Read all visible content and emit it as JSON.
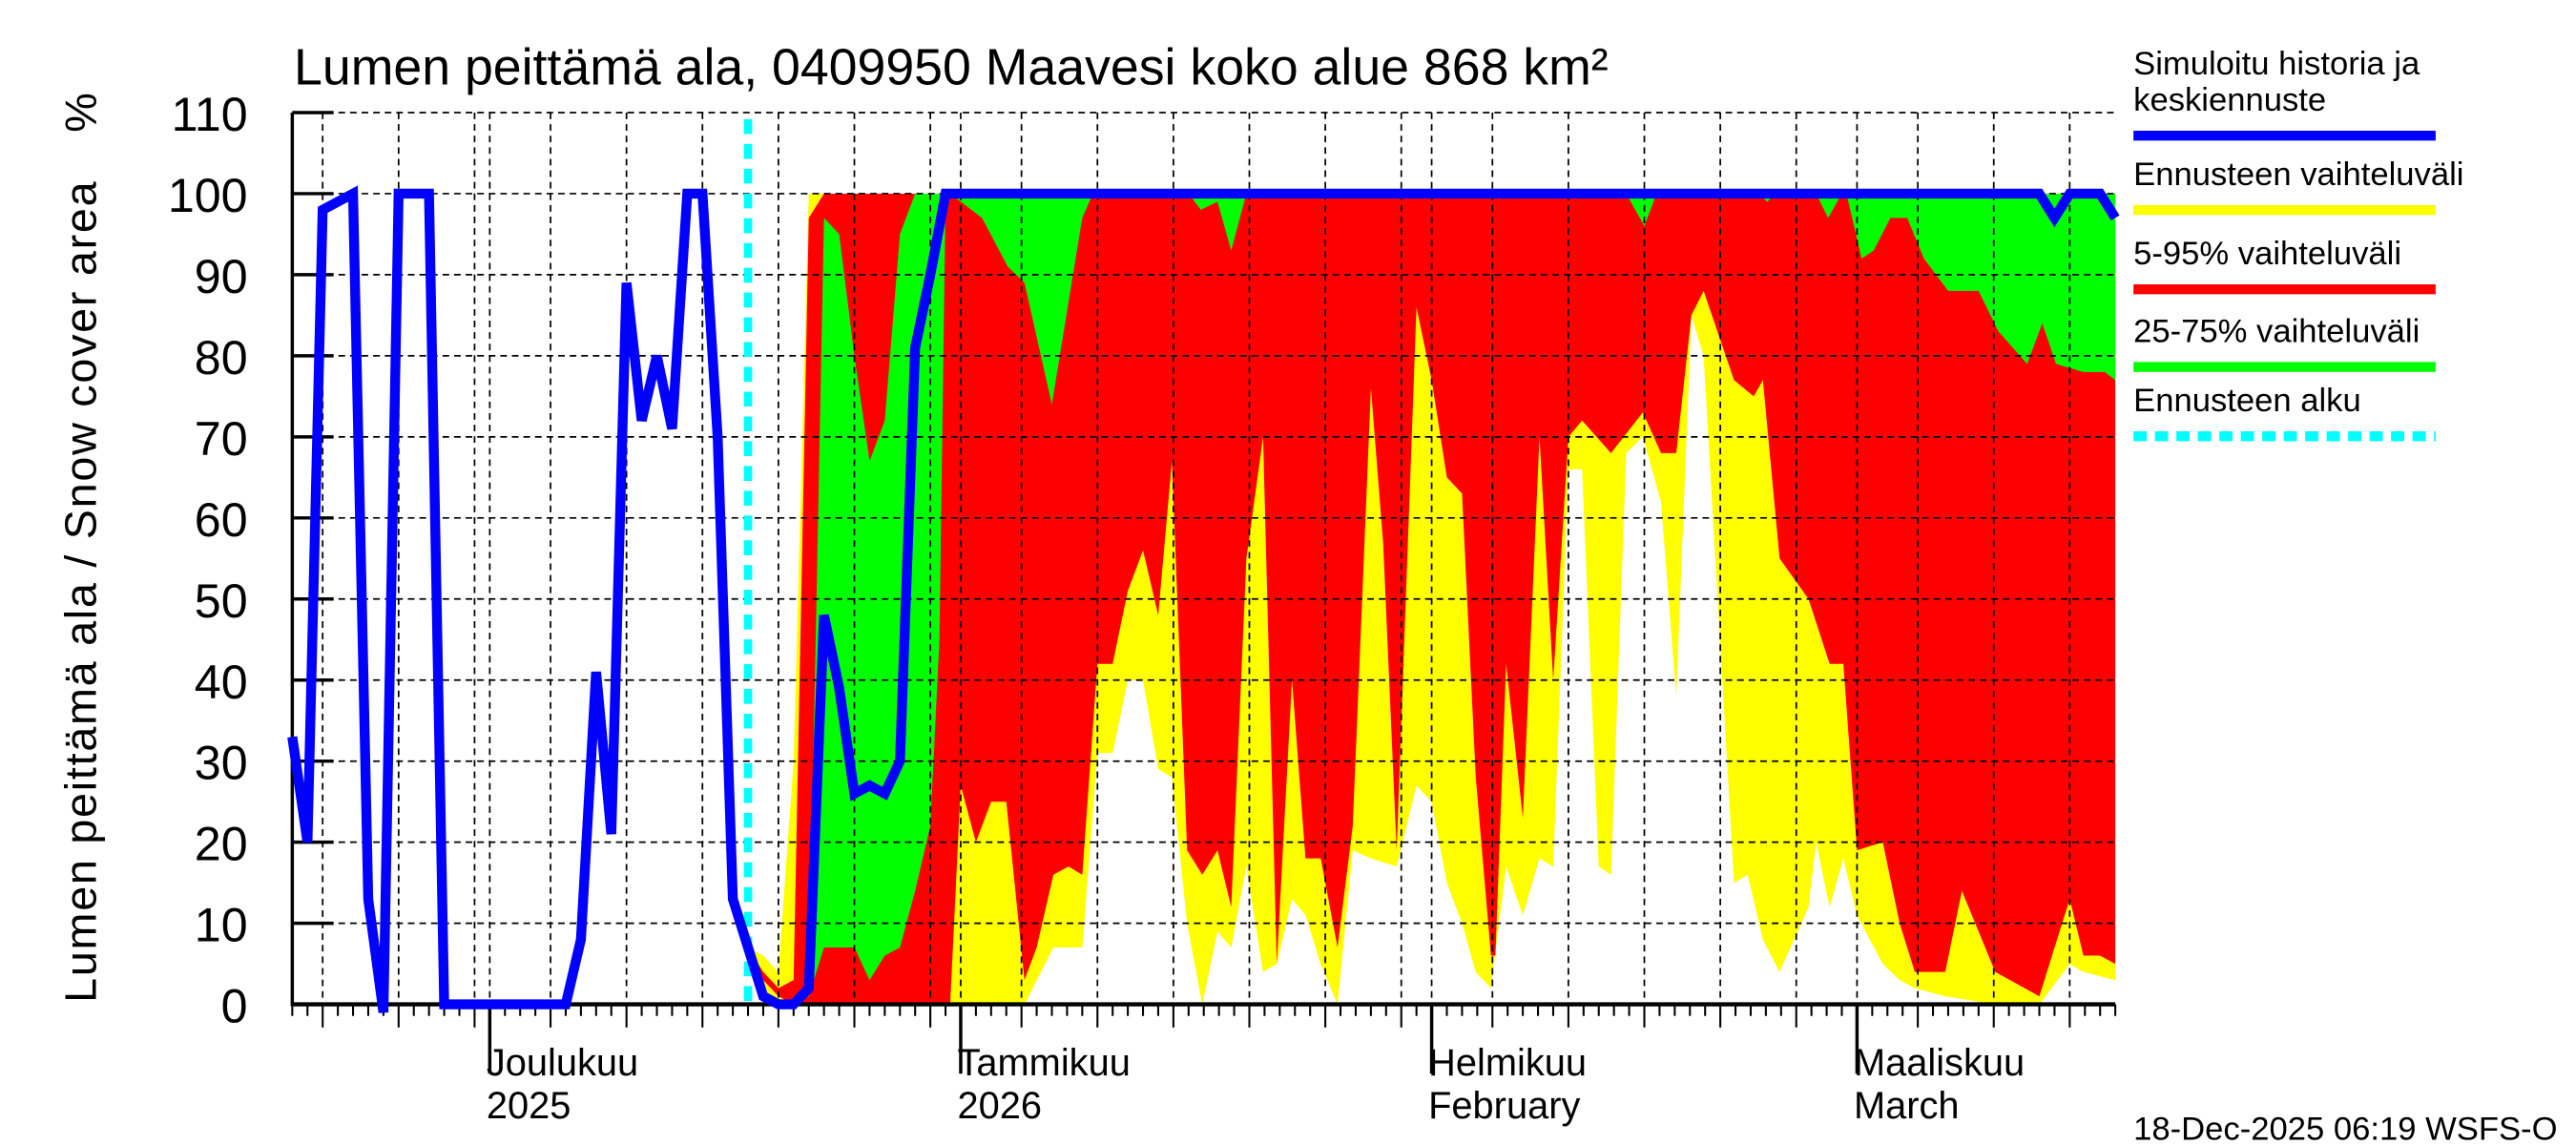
{
  "chart_data": {
    "type": "area",
    "title": "Lumen peittämä ala, 0409950 Maavesi koko alue 868 km²",
    "ylabel": "Lumen peittämä ala / Snow cover area",
    "yunit": "%",
    "ylim": [
      0,
      110
    ],
    "yticks": [
      "0",
      "10",
      "20",
      "30",
      "40",
      "50",
      "60",
      "70",
      "80",
      "90",
      "100",
      "110"
    ],
    "x_unit": "days since 2025-11-18",
    "x_origin": "2025-11-18",
    "xlim": [
      0,
      120
    ],
    "forecast_start_day": 30,
    "month_labels": [
      {
        "day": 13,
        "line1": "Joulukuu",
        "line2": "2025"
      },
      {
        "day": 44,
        "line1": "Tammikuu",
        "line2": "2026"
      },
      {
        "day": 75,
        "line1": "Helmikuu",
        "line2": "February"
      },
      {
        "day": 103,
        "line1": "Maaliskuu",
        "line2": "March"
      }
    ],
    "series": [
      {
        "name": "Simuloitu historia ja keskiennuste",
        "color": "#0000ff",
        "points": [
          [
            0,
            33
          ],
          [
            1,
            20
          ],
          [
            2,
            98
          ],
          [
            4,
            100
          ],
          [
            5,
            13
          ],
          [
            6,
            -1
          ],
          [
            7,
            100
          ],
          [
            9,
            100
          ],
          [
            10,
            0
          ],
          [
            18,
            0
          ],
          [
            19,
            8
          ],
          [
            20,
            41
          ],
          [
            21,
            21
          ],
          [
            22,
            89
          ],
          [
            23,
            72
          ],
          [
            24,
            80
          ],
          [
            25,
            71
          ],
          [
            26,
            100
          ],
          [
            27,
            100
          ],
          [
            28,
            70
          ],
          [
            29,
            13
          ],
          [
            30,
            7
          ],
          [
            31,
            1
          ],
          [
            32,
            0
          ],
          [
            33,
            0
          ],
          [
            34,
            2
          ],
          [
            35,
            48
          ],
          [
            36,
            39
          ],
          [
            37,
            26
          ],
          [
            38,
            27
          ],
          [
            39,
            26
          ],
          [
            40,
            30
          ],
          [
            41,
            81
          ],
          [
            42,
            90
          ],
          [
            43,
            100
          ],
          [
            115,
            100
          ],
          [
            116,
            97
          ],
          [
            117,
            100
          ],
          [
            119,
            100
          ],
          [
            120,
            97
          ]
        ]
      },
      {
        "name": "Ennusteen vaihteluväli",
        "color": "#ffff00",
        "lower": [
          [
            30,
            7
          ],
          [
            31,
            2
          ],
          [
            32,
            0
          ],
          [
            48.2,
            0
          ],
          [
            50.1,
            7
          ],
          [
            52,
            7
          ],
          [
            53,
            31
          ],
          [
            54,
            31
          ],
          [
            55,
            40
          ],
          [
            56,
            40
          ],
          [
            57,
            29
          ],
          [
            57.9,
            28
          ],
          [
            58.9,
            10
          ],
          [
            59.9,
            0
          ],
          [
            60.9,
            9
          ],
          [
            61.8,
            7
          ],
          [
            62.8,
            17
          ],
          [
            63.9,
            4
          ],
          [
            64.8,
            5
          ],
          [
            65.8,
            13
          ],
          [
            66.7,
            11
          ],
          [
            67.7,
            5
          ],
          [
            68.8,
            0
          ],
          [
            69.8,
            19
          ],
          [
            71,
            18
          ],
          [
            72.7,
            17
          ],
          [
            74,
            27
          ],
          [
            75,
            25
          ],
          [
            76,
            15
          ],
          [
            77,
            10
          ],
          [
            77.9,
            4
          ],
          [
            78.9,
            2
          ],
          [
            79.9,
            17
          ],
          [
            81,
            11
          ],
          [
            82.1,
            18
          ],
          [
            83,
            17
          ],
          [
            84,
            66
          ],
          [
            84.9,
            66
          ],
          [
            86,
            17
          ],
          [
            86.8,
            16
          ],
          [
            87.8,
            68
          ],
          [
            88.9,
            70
          ],
          [
            90.1,
            62
          ],
          [
            91.1,
            38
          ],
          [
            92.1,
            85
          ],
          [
            92.9,
            80
          ],
          [
            94.9,
            15
          ],
          [
            95.8,
            16
          ],
          [
            96.8,
            8
          ],
          [
            97.9,
            4
          ],
          [
            99.8,
            12
          ],
          [
            100.3,
            20
          ],
          [
            101.2,
            12
          ],
          [
            102.1,
            18
          ],
          [
            103,
            11
          ],
          [
            104.7,
            5
          ],
          [
            105.8,
            3
          ],
          [
            106.8,
            2
          ],
          [
            108.8,
            1
          ],
          [
            112.1,
            0
          ],
          [
            115,
            0
          ],
          [
            117,
            5
          ],
          [
            117.9,
            4
          ],
          [
            120,
            3
          ]
        ],
        "upper": [
          [
            30,
            7
          ],
          [
            31,
            6
          ],
          [
            32,
            4
          ],
          [
            33,
            30
          ],
          [
            34,
            100
          ],
          [
            120,
            100
          ]
        ]
      },
      {
        "name": "5-95% vaihteluväli",
        "color": "#ff0000",
        "lower": [
          [
            30,
            7
          ],
          [
            31,
            3
          ],
          [
            32,
            1
          ],
          [
            33,
            0
          ],
          [
            43.3,
            0
          ],
          [
            44,
            27
          ],
          [
            45,
            20
          ],
          [
            46,
            25
          ],
          [
            47,
            25
          ],
          [
            48.2,
            3
          ],
          [
            49,
            7
          ],
          [
            50.1,
            16
          ],
          [
            51.1,
            17
          ],
          [
            52,
            16
          ],
          [
            53,
            42
          ],
          [
            54,
            42
          ],
          [
            55,
            51
          ],
          [
            56,
            56
          ],
          [
            57,
            48
          ],
          [
            57.9,
            67
          ],
          [
            58.9,
            19
          ],
          [
            59.9,
            16
          ],
          [
            60.9,
            19
          ],
          [
            61.8,
            12
          ],
          [
            62.8,
            55
          ],
          [
            63.9,
            70
          ],
          [
            64.8,
            5
          ],
          [
            65.8,
            40
          ],
          [
            66.7,
            18
          ],
          [
            67.7,
            18
          ],
          [
            68.8,
            7
          ],
          [
            69.8,
            22
          ],
          [
            71,
            76
          ],
          [
            71.8,
            57
          ],
          [
            72.7,
            19
          ],
          [
            74,
            86
          ],
          [
            75,
            77
          ],
          [
            76,
            65
          ],
          [
            77,
            63
          ],
          [
            77.9,
            28
          ],
          [
            78.9,
            6
          ],
          [
            79.2,
            6
          ],
          [
            79.9,
            42
          ],
          [
            81,
            23
          ],
          [
            82.1,
            70
          ],
          [
            83,
            40
          ],
          [
            84,
            70
          ],
          [
            84.9,
            72
          ],
          [
            86.8,
            68
          ],
          [
            88.9,
            73
          ],
          [
            90.1,
            68
          ],
          [
            91.1,
            68
          ],
          [
            92.1,
            85
          ],
          [
            92.9,
            88
          ],
          [
            94.9,
            77
          ],
          [
            96.2,
            75
          ],
          [
            96.8,
            77
          ],
          [
            97.9,
            55
          ],
          [
            99.8,
            50
          ],
          [
            101.2,
            42
          ],
          [
            102.1,
            42
          ],
          [
            103,
            19
          ],
          [
            104.7,
            20
          ],
          [
            105.8,
            10
          ],
          [
            106.8,
            4
          ],
          [
            108.8,
            4
          ],
          [
            109.9,
            14
          ],
          [
            112.1,
            4
          ],
          [
            115,
            1
          ],
          [
            117,
            13
          ],
          [
            117.9,
            6
          ],
          [
            119,
            6
          ],
          [
            120,
            5
          ]
        ],
        "upper": [
          [
            30,
            7
          ],
          [
            31,
            4
          ],
          [
            32,
            2
          ],
          [
            33,
            3
          ],
          [
            34,
            97
          ],
          [
            35,
            100
          ],
          [
            120,
            100
          ]
        ]
      },
      {
        "name": "25-75% vaihteluväli",
        "color": "#00ff00",
        "lower": [
          [
            30,
            7
          ],
          [
            31,
            3
          ],
          [
            32,
            1
          ],
          [
            34,
            1
          ],
          [
            35,
            7
          ],
          [
            37,
            7
          ],
          [
            38,
            3
          ],
          [
            39,
            6
          ],
          [
            40,
            7
          ],
          [
            41,
            14
          ],
          [
            42,
            22
          ],
          [
            42.6,
            45
          ],
          [
            43,
            99
          ],
          [
            43.3,
            100
          ],
          [
            45.4,
            97
          ],
          [
            47.1,
            91
          ],
          [
            48.2,
            89
          ],
          [
            50,
            74
          ],
          [
            52,
            97
          ],
          [
            52.7,
            100
          ],
          [
            59,
            100
          ],
          [
            59.8,
            98
          ],
          [
            60.9,
            99
          ],
          [
            61.8,
            93
          ],
          [
            62.8,
            100
          ],
          [
            87.8,
            100
          ],
          [
            89,
            96
          ],
          [
            89.8,
            100
          ],
          [
            96.5,
            100
          ],
          [
            97.1,
            99
          ],
          [
            97.6,
            100
          ],
          [
            100.3,
            100
          ],
          [
            101.1,
            97
          ],
          [
            102,
            100
          ],
          [
            102.3,
            100
          ],
          [
            103.3,
            92
          ],
          [
            104.1,
            93
          ],
          [
            105.2,
            97
          ],
          [
            106.3,
            97
          ],
          [
            107.4,
            92
          ],
          [
            109,
            88
          ],
          [
            111,
            88
          ],
          [
            112.3,
            83
          ],
          [
            114.2,
            79
          ],
          [
            115.2,
            84
          ],
          [
            116.1,
            79
          ],
          [
            117.9,
            78
          ],
          [
            119.3,
            78
          ],
          [
            120,
            77
          ]
        ],
        "upper": [
          [
            30,
            7
          ],
          [
            31,
            3
          ],
          [
            32,
            1
          ],
          [
            33,
            1
          ],
          [
            34,
            2
          ],
          [
            35,
            97
          ],
          [
            36,
            95
          ],
          [
            37,
            80
          ],
          [
            38,
            67
          ],
          [
            39,
            72
          ],
          [
            40,
            95
          ],
          [
            41,
            100
          ],
          [
            120,
            100
          ]
        ]
      }
    ],
    "legend": {
      "placement": "right",
      "items": [
        {
          "label_line1": "Simuloitu historia ja",
          "label_line2": "keskiennuste",
          "color": "#0000ff",
          "style": "solid"
        },
        {
          "label_line1": "Ennusteen vaihteluväli",
          "color": "#ffff00",
          "style": "solid"
        },
        {
          "label_line1": "5-95% vaihteluväli",
          "color": "#ff0000",
          "style": "solid"
        },
        {
          "label_line1": "25-75% vaihteluväli",
          "color": "#00ff00",
          "style": "solid"
        },
        {
          "label_line1": "Ennusteen alku",
          "color": "#00ffff",
          "style": "dashed"
        }
      ]
    },
    "grid": true
  },
  "footer": {
    "timestamp": "18-Dec-2025 06:19 WSFS-O"
  }
}
